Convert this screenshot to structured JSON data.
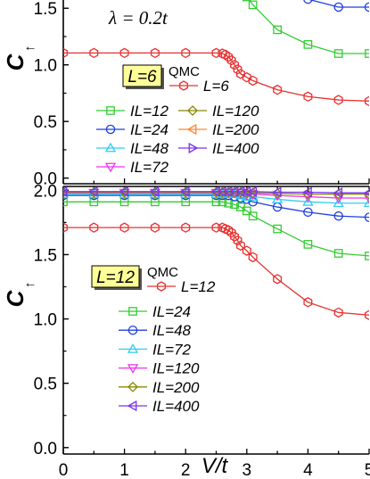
{
  "chart_data": [
    {
      "type": "line",
      "panel": "top",
      "annotation": "λ = 0.2t",
      "annotation_color": "#1a7a7a",
      "ylabel": "C",
      "ylabel_sub": "↑",
      "xlim": [
        0,
        5
      ],
      "ylim": [
        -0.05,
        1.62
      ],
      "yticks": [
        "0.0",
        "0.5",
        "1.0",
        "1.5"
      ],
      "ytick_values": [
        0.0,
        0.5,
        1.0,
        1.5
      ],
      "tag_label": "L=6",
      "tag_color": "#ffff99",
      "qmc_label": "QMC",
      "grid": false,
      "series": [
        {
          "name": "L=6",
          "style": "qmc",
          "marker": "hexagon",
          "color": "#e83030",
          "x": [
            0,
            0.5,
            1.0,
            1.5,
            2.0,
            2.5,
            2.6,
            2.65,
            2.7,
            2.75,
            2.8,
            2.85,
            2.9,
            3.0,
            3.1,
            3.5,
            4.0,
            4.5,
            5.0
          ],
          "y": [
            1.105,
            1.105,
            1.105,
            1.105,
            1.105,
            1.105,
            1.1,
            1.09,
            1.07,
            1.04,
            1.0,
            0.96,
            0.92,
            0.89,
            0.86,
            0.78,
            0.72,
            0.69,
            0.68
          ]
        },
        {
          "name": "IL=12",
          "marker": "square",
          "color": "#33cc33",
          "x": [
            2.8,
            3.0,
            3.1,
            3.5,
            4.0,
            4.5,
            5.0
          ],
          "y": [
            1.7,
            1.6,
            1.53,
            1.31,
            1.18,
            1.1,
            1.1
          ]
        },
        {
          "name": "IL=24",
          "marker": "circle",
          "color": "#1f3fe0",
          "x": [
            3.9,
            4.0,
            4.5,
            5.0
          ],
          "y": [
            1.7,
            1.58,
            1.51,
            1.51
          ]
        },
        {
          "name": "IL=48",
          "marker": "triangle-up",
          "color": "#33ccee",
          "x": [],
          "y": []
        },
        {
          "name": "IL=72",
          "marker": "triangle-down",
          "color": "#ee33ee",
          "x": [],
          "y": []
        },
        {
          "name": "IL=120",
          "marker": "diamond",
          "color": "#888800",
          "x": [],
          "y": []
        },
        {
          "name": "IL=200",
          "marker": "triangle-left",
          "color": "#ff8833",
          "x": [],
          "y": []
        },
        {
          "name": "IL=400",
          "marker": "triangle-right",
          "color": "#7a33ee",
          "x": [],
          "y": []
        }
      ]
    },
    {
      "type": "line",
      "panel": "bottom",
      "ylabel": "C",
      "ylabel_sub": "↑",
      "xlabel": "V/t",
      "xlim": [
        0,
        5
      ],
      "ylim": [
        -0.05,
        2.03
      ],
      "xticks": [
        "0",
        "0.5",
        "1",
        "1.5",
        "2",
        "2.5",
        "3",
        "3.5",
        "4",
        "4.5",
        "5"
      ],
      "xtick_values": [
        0,
        0.5,
        1,
        1.5,
        2,
        2.5,
        3,
        3.5,
        4,
        4.5,
        5
      ],
      "yticks": [
        "0.0",
        "0.5",
        "1.0",
        "1.5",
        "2.0"
      ],
      "ytick_values": [
        0.0,
        0.5,
        1.0,
        1.5,
        2.0
      ],
      "tag_label": "L=12",
      "tag_color": "#ffff99",
      "qmc_label": "QMC",
      "grid": false,
      "series": [
        {
          "name": "L=12",
          "style": "qmc",
          "marker": "hexagon",
          "color": "#e83030",
          "x": [
            0,
            0.5,
            1.0,
            1.5,
            2.0,
            2.5,
            2.6,
            2.65,
            2.7,
            2.75,
            2.8,
            2.85,
            2.9,
            3.0,
            3.1,
            3.5,
            4.0,
            4.5,
            5.0
          ],
          "y": [
            1.71,
            1.71,
            1.71,
            1.71,
            1.71,
            1.71,
            1.71,
            1.7,
            1.69,
            1.67,
            1.64,
            1.61,
            1.57,
            1.53,
            1.48,
            1.31,
            1.13,
            1.05,
            1.03
          ]
        },
        {
          "name": "IL=24",
          "marker": "square",
          "color": "#33cc33",
          "x": [
            0,
            0.5,
            1.0,
            1.5,
            2.0,
            2.5,
            2.6,
            2.7,
            2.8,
            2.9,
            3.0,
            3.1,
            3.5,
            4.0,
            4.5,
            5.0
          ],
          "y": [
            1.91,
            1.91,
            1.91,
            1.91,
            1.91,
            1.91,
            1.91,
            1.9,
            1.89,
            1.87,
            1.84,
            1.8,
            1.7,
            1.58,
            1.51,
            1.49
          ]
        },
        {
          "name": "IL=48",
          "marker": "circle",
          "color": "#1f3fe0",
          "x": [
            0,
            0.5,
            1.0,
            1.5,
            2.0,
            2.5,
            2.6,
            2.7,
            2.8,
            2.9,
            3.0,
            3.1,
            3.5,
            4.0,
            4.5,
            5.0
          ],
          "y": [
            1.96,
            1.96,
            1.96,
            1.96,
            1.96,
            1.96,
            1.96,
            1.96,
            1.95,
            1.94,
            1.93,
            1.91,
            1.87,
            1.83,
            1.8,
            1.79
          ]
        },
        {
          "name": "IL=72",
          "marker": "triangle-up",
          "color": "#33ccee",
          "x": [
            0,
            0.5,
            1.0,
            1.5,
            2.0,
            2.5,
            2.6,
            2.7,
            2.8,
            2.9,
            3.0,
            3.1,
            3.5,
            4.0,
            4.5,
            5.0
          ],
          "y": [
            1.97,
            1.97,
            1.97,
            1.97,
            1.97,
            1.97,
            1.97,
            1.97,
            1.97,
            1.96,
            1.95,
            1.95,
            1.93,
            1.91,
            1.9,
            1.9
          ]
        },
        {
          "name": "IL=120",
          "marker": "triangle-down",
          "color": "#ee33ee",
          "x": [
            0,
            0.5,
            1.0,
            1.5,
            2.0,
            2.5,
            2.6,
            2.7,
            2.8,
            2.9,
            3.0,
            3.1,
            3.5,
            4.0,
            4.5,
            5.0
          ],
          "y": [
            1.98,
            1.98,
            1.98,
            1.98,
            1.98,
            1.98,
            1.98,
            1.98,
            1.98,
            1.98,
            1.97,
            1.97,
            1.96,
            1.95,
            1.94,
            1.94
          ]
        },
        {
          "name": "IL=200",
          "marker": "diamond",
          "color": "#888800",
          "x": [
            0,
            0.5,
            1.0,
            1.5,
            2.0,
            2.5,
            2.6,
            2.7,
            2.8,
            2.9,
            3.0,
            3.1,
            3.5,
            4.0,
            4.5,
            5.0
          ],
          "y": [
            1.985,
            1.985,
            1.985,
            1.985,
            1.985,
            1.985,
            1.985,
            1.985,
            1.985,
            1.985,
            1.98,
            1.98,
            1.975,
            1.97,
            1.97,
            1.97
          ]
        },
        {
          "name": "IL=400",
          "marker": "triangle-left",
          "color": "#7a33ee",
          "x": [
            0,
            0.5,
            1.0,
            1.5,
            2.0,
            2.5,
            2.6,
            2.7,
            2.8,
            2.9,
            3.0,
            3.1,
            3.5,
            4.0,
            4.5,
            5.0
          ],
          "y": [
            1.99,
            1.99,
            1.99,
            1.99,
            1.99,
            1.99,
            1.99,
            1.99,
            1.99,
            1.99,
            1.99,
            1.99,
            1.985,
            1.985,
            1.98,
            1.98
          ]
        }
      ]
    }
  ]
}
